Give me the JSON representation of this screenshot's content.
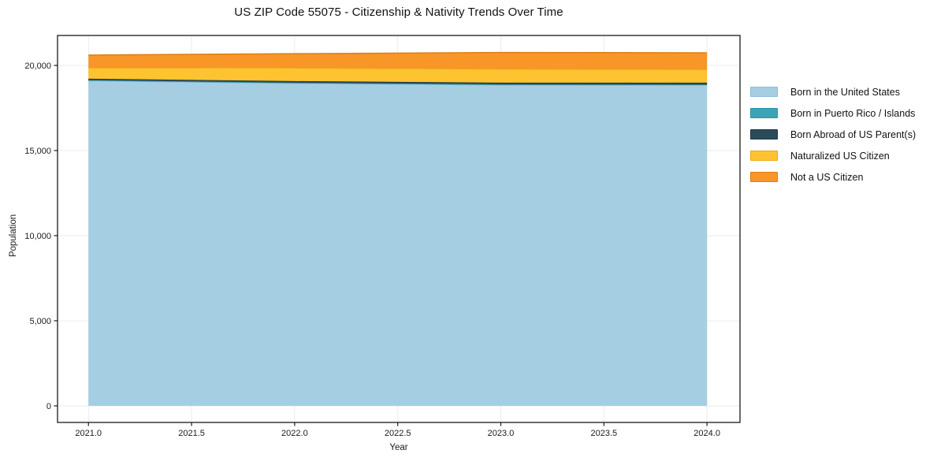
{
  "chart_data": {
    "type": "area",
    "stacked": true,
    "title": "US ZIP Code 55075 - Citizenship & Nativity Trends Over Time",
    "xlabel": "Year",
    "ylabel": "Population",
    "x": [
      2021,
      2022,
      2023,
      2024
    ],
    "series": [
      {
        "name": "Born in the United States",
        "color": "#A6CEE3",
        "edge_color": "#8FBCD6",
        "values": [
          19100,
          18950,
          18850,
          18840
        ]
      },
      {
        "name": "Born in Puerto Rico / Islands",
        "color": "#3DA4B8",
        "edge_color": "#2D8FA3",
        "values": [
          40,
          40,
          40,
          40
        ]
      },
      {
        "name": "Born Abroad of US Parent(s)",
        "color": "#2B4A5A",
        "edge_color": "#1F3744",
        "values": [
          80,
          90,
          100,
          110
        ]
      },
      {
        "name": "Naturalized US Citizen",
        "color": "#FDC330",
        "edge_color": "#E9A816",
        "values": [
          650,
          780,
          800,
          780
        ]
      },
      {
        "name": "Not a US Citizen",
        "color": "#F89627",
        "edge_color": "#DE7E12",
        "values": [
          740,
          830,
          970,
          970
        ]
      }
    ],
    "x_ticks": {
      "values": [
        2021.0,
        2021.5,
        2022.0,
        2022.5,
        2023.0,
        2023.5,
        2024.0
      ],
      "labels": [
        "2021.0",
        "2021.5",
        "2022.0",
        "2022.5",
        "2023.0",
        "2023.5",
        "2024.0"
      ]
    },
    "y_ticks": {
      "values": [
        0,
        5000,
        10000,
        15000,
        20000
      ],
      "labels": [
        "0",
        "5,000",
        "10,000",
        "15,000",
        "20,000"
      ]
    },
    "xlim": [
      2020.85,
      2024.16
    ],
    "ylim": [
      -975,
      21760
    ],
    "grid": true,
    "legend_position": "right",
    "colors": {
      "frame": "#1a1a1a",
      "gridline": "#ebebeb",
      "tick_text": "#1a1a1a"
    }
  }
}
